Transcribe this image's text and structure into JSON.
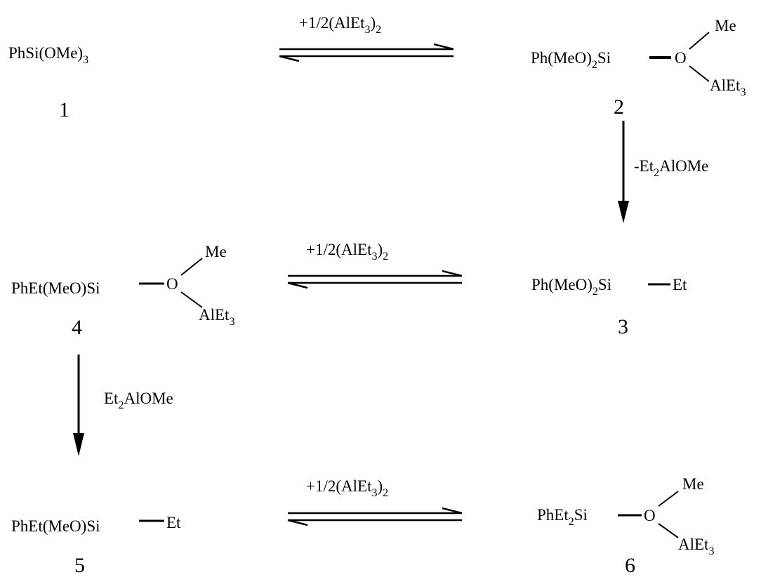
{
  "compounds": {
    "c1": {
      "number": "1",
      "formula_a": "PhSi(OMe)",
      "formula_a_sub": "3"
    },
    "c2": {
      "number": "2",
      "formula_a": "Ph(MeO)",
      "formula_a_sub": "2",
      "formula_b": "Si",
      "oxygen": "O",
      "methyl": "Me",
      "al_label": "AlEt",
      "al_sub": "3"
    },
    "c3": {
      "number": "3",
      "formula_a": "Ph(MeO)",
      "formula_a_sub": "2",
      "formula_b": "Si",
      "ethyl": "Et"
    },
    "c4": {
      "number": "4",
      "formula": "PhEt(MeO)Si",
      "oxygen": "O",
      "methyl": "Me",
      "al_label": "AlEt",
      "al_sub": "3"
    },
    "c5": {
      "number": "5",
      "formula": "PhEt(MeO)Si",
      "ethyl": "Et"
    },
    "c6": {
      "number": "6",
      "formula_a": "PhEt",
      "formula_a_sub": "2",
      "formula_b": "Si",
      "oxygen": "O",
      "methyl": "Me",
      "al_label": "AlEt",
      "al_sub": "3"
    }
  },
  "reagents": {
    "r12": {
      "a": "+1/2(AlEt",
      "a_sub": "3",
      "b": ")",
      "b_sub": "2"
    },
    "r43": {
      "a": "+1/2(AlEt",
      "a_sub": "3",
      "b": ")",
      "b_sub": "2"
    },
    "r56": {
      "a": "+1/2(AlEt",
      "a_sub": "3",
      "b": ")",
      "b_sub": "2"
    },
    "r23": {
      "a": "-Et",
      "a_sub": "2",
      "b": "AlOMe"
    },
    "r45": {
      "a": "Et",
      "a_sub": "2",
      "b": "AlOMe"
    }
  }
}
